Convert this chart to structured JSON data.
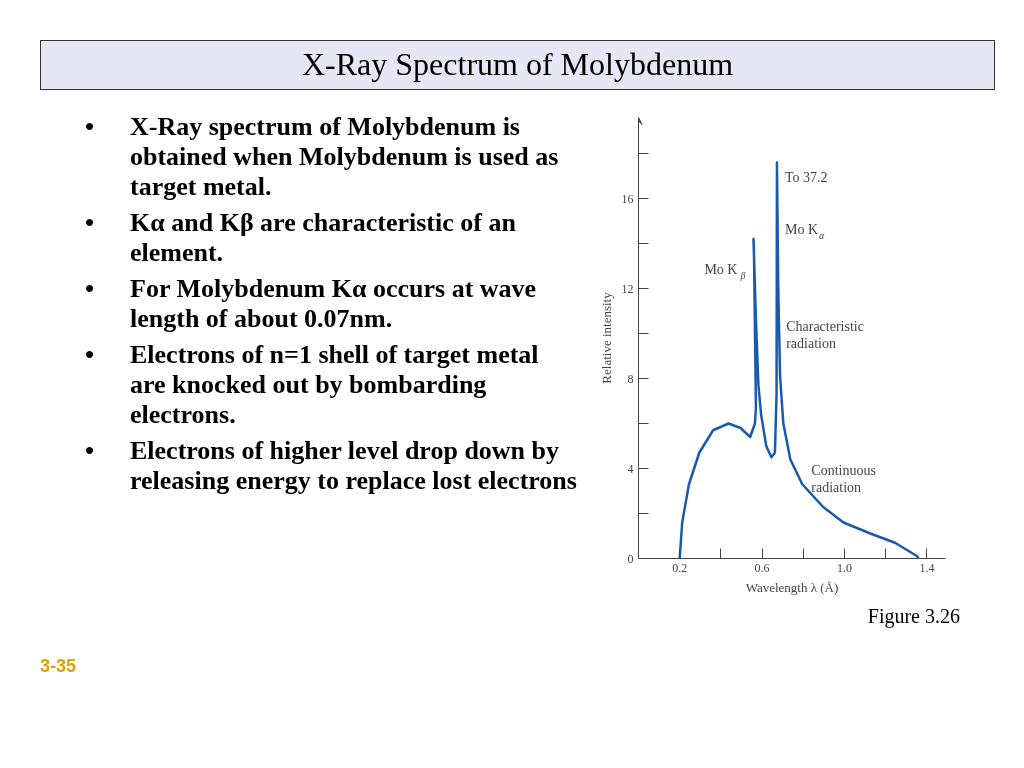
{
  "chart_data": {
    "type": "line",
    "title": "X-Ray Spectrum of Molybdenum",
    "xlabel": "Wavelength λ (Å)",
    "ylabel": "Relative intensity",
    "x": [
      0.2,
      0.212,
      0.245,
      0.295,
      0.362,
      0.437,
      0.495,
      0.542,
      0.565,
      0.57,
      0.56,
      0.558,
      0.57,
      0.582,
      0.595,
      0.62,
      0.645,
      0.662,
      0.67,
      0.672,
      0.678,
      0.687,
      0.703,
      0.737,
      0.795,
      0.895,
      0.995,
      1.128,
      1.245,
      1.353,
      1.357
    ],
    "series": [
      {
        "color": "#1a5aab",
        "values": [
          0,
          1.6,
          3.3,
          4.7,
          5.7,
          6.0,
          5.8,
          5.4,
          6.0,
          6.7,
          13.9,
          14.2,
          10.6,
          7.7,
          6.4,
          5.0,
          4.5,
          4.7,
          7.3,
          17.6,
          12.2,
          8.1,
          6.0,
          4.4,
          3.3,
          2.3,
          1.6,
          1.1,
          0.7,
          0.1,
          0
        ]
      }
    ],
    "xlim": [
      0,
      1.49
    ],
    "ylim": [
      0,
      19.6
    ],
    "xticks": [
      0.2,
      {
        "value": 0.4,
        "label": null
      },
      0.6,
      {
        "value": 0.8,
        "label": null
      },
      {
        "value": 1.0,
        "label": "1.0"
      },
      {
        "value": 1.2,
        "label": null
      },
      1.4
    ],
    "yticks": [
      0,
      {
        "value": 2,
        "label": null
      },
      4,
      {
        "value": 6,
        "label": null
      },
      8,
      {
        "value": 10,
        "label": null
      },
      12,
      {
        "value": 14,
        "label": null
      },
      16,
      {
        "value": 18,
        "label": null
      }
    ],
    "grid": false,
    "marker": "none",
    "line_style": "solid",
    "annotations": [
      {
        "text": "Mo K$_{β}$",
        "x": 0.558,
        "y": 12.5
      },
      {
        "text": "To 37.2",
        "x": 0.672,
        "y": 16.6
      },
      {
        "text": "Mo K$_{α}$",
        "x": 0.672,
        "y": 14.3
      },
      {
        "text": "Characteristic radiation",
        "x": 0.678,
        "y": 10.0
      },
      {
        "text": "Continuous radiation",
        "x": 0.8,
        "y": 3.6
      },
      "• X-Ray spectrum of Molybdenum is obtained when Molybdenum is used as target metal.",
      "• Kα  and Kβ  are characteristic of an element.",
      "• For Molybdenum Kα occurs at wave length of about 0.07nm.",
      "• Electrons of n=1 shell of target metal are knocked out by bombarding electrons.",
      "• Electrons of higher level drop down by releasing energy to replace lost electrons",
      "Figure 3.26",
      "3-35"
    ]
  }
}
